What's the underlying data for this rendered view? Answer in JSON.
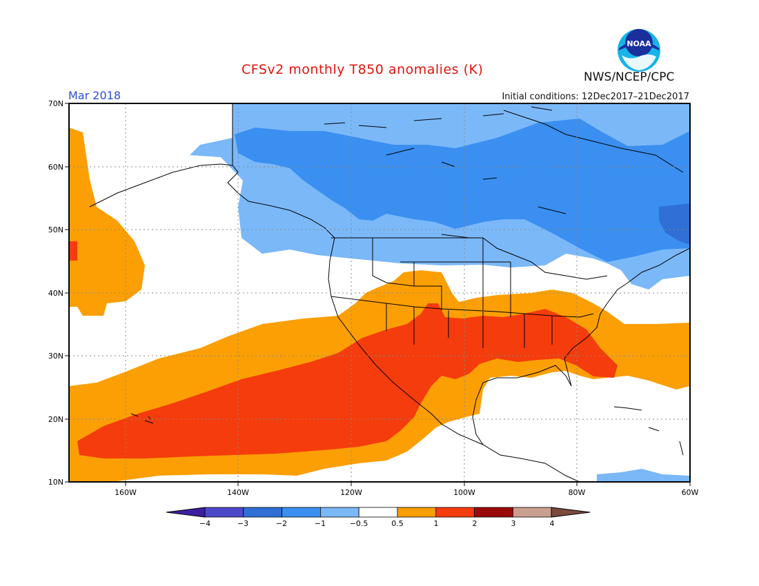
{
  "title": "CFSv2 monthly T850 anomalies (K)",
  "agency": "NWS/NCEP/CPC",
  "logo_text": "NOAA",
  "valid_month": "Mar 2018",
  "initial_conditions": "Initial conditions: 12Dec2017–21Dec2017",
  "lat_labels": [
    "70N",
    "60N",
    "50N",
    "40N",
    "30N",
    "20N",
    "10N"
  ],
  "lon_labels": [
    "160W",
    "140W",
    "120W",
    "100W",
    "80W",
    "60W"
  ],
  "colorbar": {
    "tick_labels": [
      "−4",
      "−3",
      "−2",
      "−1",
      "−0.5",
      "0.5",
      "1",
      "2",
      "3",
      "4"
    ],
    "colors": [
      "#3c1fa0",
      "#4c49c9",
      "#2f6fd6",
      "#3a8ff0",
      "#7bb8f8",
      "#ffffff",
      "#fb9f05",
      "#f53c0c",
      "#9b0a0a",
      "#c9a08f",
      "#7a4a3d"
    ]
  },
  "anomaly_colors": {
    "cold_1": "#7bb8f8",
    "cold_2": "#3a8ff0",
    "cold_3": "#2f6fd6",
    "warm_1": "#fb9f05",
    "warm_2": "#f53c0c"
  }
}
